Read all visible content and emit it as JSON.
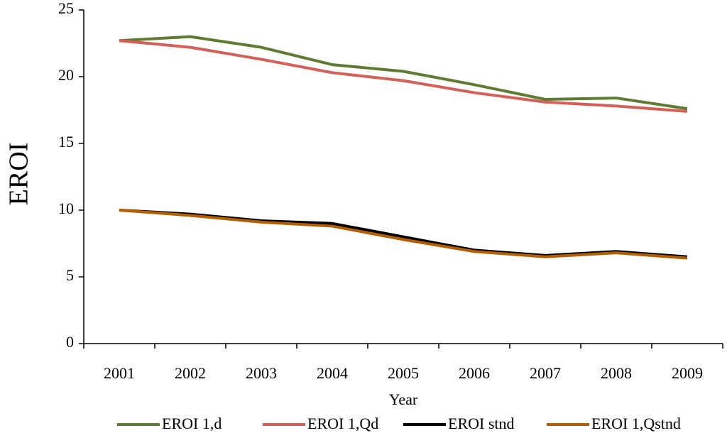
{
  "chart_data": {
    "type": "line",
    "x_label": "Year",
    "y_label": "EROI",
    "categories": [
      "2001",
      "2002",
      "2003",
      "2004",
      "2005",
      "2006",
      "2007",
      "2008",
      "2009"
    ],
    "series": [
      {
        "name": "EROI 1,d",
        "color": "#5f7a32",
        "values": [
          22.7,
          23.0,
          22.2,
          20.9,
          20.4,
          19.4,
          18.3,
          18.4,
          17.6
        ]
      },
      {
        "name": "EROI 1,Qd",
        "color": "#d4605a",
        "values": [
          22.7,
          22.2,
          21.3,
          20.3,
          19.7,
          18.8,
          18.1,
          17.8,
          17.4
        ]
      },
      {
        "name": "EROI stnd",
        "color": "#000000",
        "values": [
          10.0,
          9.7,
          9.2,
          9.0,
          8.0,
          7.0,
          6.6,
          6.9,
          6.5
        ]
      },
      {
        "name": "EROI 1,Qstnd",
        "color": "#b35e00",
        "values": [
          10.0,
          9.6,
          9.1,
          8.8,
          7.8,
          6.9,
          6.5,
          6.8,
          6.4
        ]
      }
    ],
    "ylim": [
      0,
      25
    ],
    "yticks": [
      0,
      5,
      10,
      15,
      20,
      25
    ],
    "legend": "bottom"
  }
}
